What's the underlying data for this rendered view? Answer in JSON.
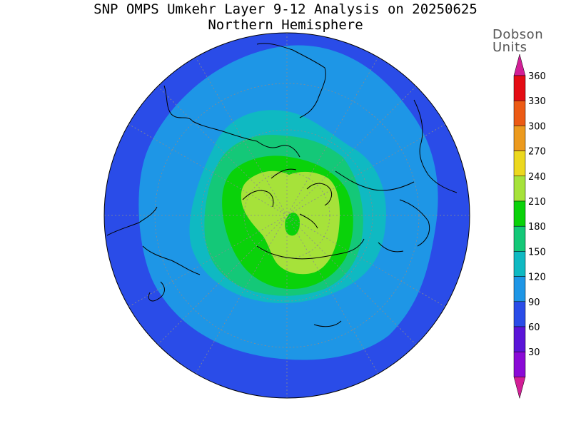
{
  "title": "SNP OMPS Umkehr Layer 9-12 Analysis on 20250625",
  "subtitle": "Northern Hemisphere",
  "colorbar": {
    "units_line1": "Dobson",
    "units_line2": "Units",
    "levels": [
      30,
      60,
      90,
      120,
      150,
      180,
      210,
      240,
      270,
      300,
      330,
      360
    ],
    "colors": [
      "#8a0ad6",
      "#5a14d8",
      "#2a4ce8",
      "#1e96e6",
      "#0fb9c2",
      "#14c878",
      "#0ad20a",
      "#a6e23a",
      "#ecd81e",
      "#ec9a1e",
      "#ec5a14",
      "#e40c14"
    ],
    "under_color": "#d21e96",
    "over_color": "#d21e96"
  },
  "map": {
    "projection": "north-polar-stereographic",
    "regions": [
      {
        "level": 60,
        "color": "#2a4ce8"
      },
      {
        "level": 90,
        "color": "#1e96e6"
      },
      {
        "level": 120,
        "color": "#0fb9c2"
      },
      {
        "level": 150,
        "color": "#14c878"
      },
      {
        "level": 180,
        "color": "#0ad20a"
      },
      {
        "level": 210,
        "color": "#a6e23a"
      }
    ]
  }
}
